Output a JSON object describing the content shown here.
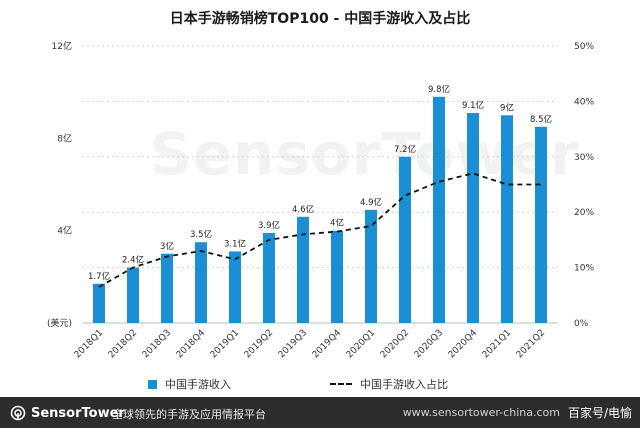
{
  "chart_data": {
    "type": "bar",
    "title": "日本手游畅销榜TOP100 - 中国手游收入及占比",
    "categories": [
      "2018Q1",
      "2018Q2",
      "2018Q3",
      "2018Q4",
      "2019Q1",
      "2019Q2",
      "2019Q3",
      "2019Q4",
      "2020Q1",
      "2020Q2",
      "2020Q3",
      "2020Q4",
      "2021Q1",
      "2021Q2"
    ],
    "series": [
      {
        "name": "中国手游收入",
        "type": "bar",
        "axis": "left",
        "values": [
          1.7,
          2.4,
          3,
          3.5,
          3.1,
          3.9,
          4.6,
          4,
          4.9,
          7.2,
          9.8,
          9.1,
          9,
          8.5
        ],
        "labels": [
          "1.7亿",
          "2.4亿",
          "3亿",
          "3.5亿",
          "3.1亿",
          "3.9亿",
          "4.6亿",
          "4亿",
          "4.9亿",
          "7.2亿",
          "9.8亿",
          "9.1亿",
          "9亿",
          "8.5亿"
        ],
        "color": "#1a8fd6"
      },
      {
        "name": "中国手游收入占比",
        "type": "line",
        "axis": "right",
        "style": "dashed",
        "values": [
          6.5,
          10,
          12,
          13,
          11.5,
          15,
          16,
          16.5,
          17.5,
          23,
          25.5,
          27,
          25,
          25
        ],
        "color": "#111111"
      }
    ],
    "ylabel": "(美元)",
    "ylim": [
      0,
      12
    ],
    "y_ticks": [
      "(美元)",
      "4亿",
      "8亿",
      "12亿"
    ],
    "y2lim": [
      0,
      50
    ],
    "y2_ticks": [
      "0%",
      "10%",
      "20%",
      "30%",
      "40%",
      "50%"
    ],
    "grid": true,
    "legend_position": "bottom"
  },
  "footer": {
    "brand": "SensorTower",
    "tagline": "全球领先的手游及应用情报平台",
    "url": "www.sensortower-china.com",
    "credit": "百家号/电愉"
  },
  "watermark": "SensorTower"
}
